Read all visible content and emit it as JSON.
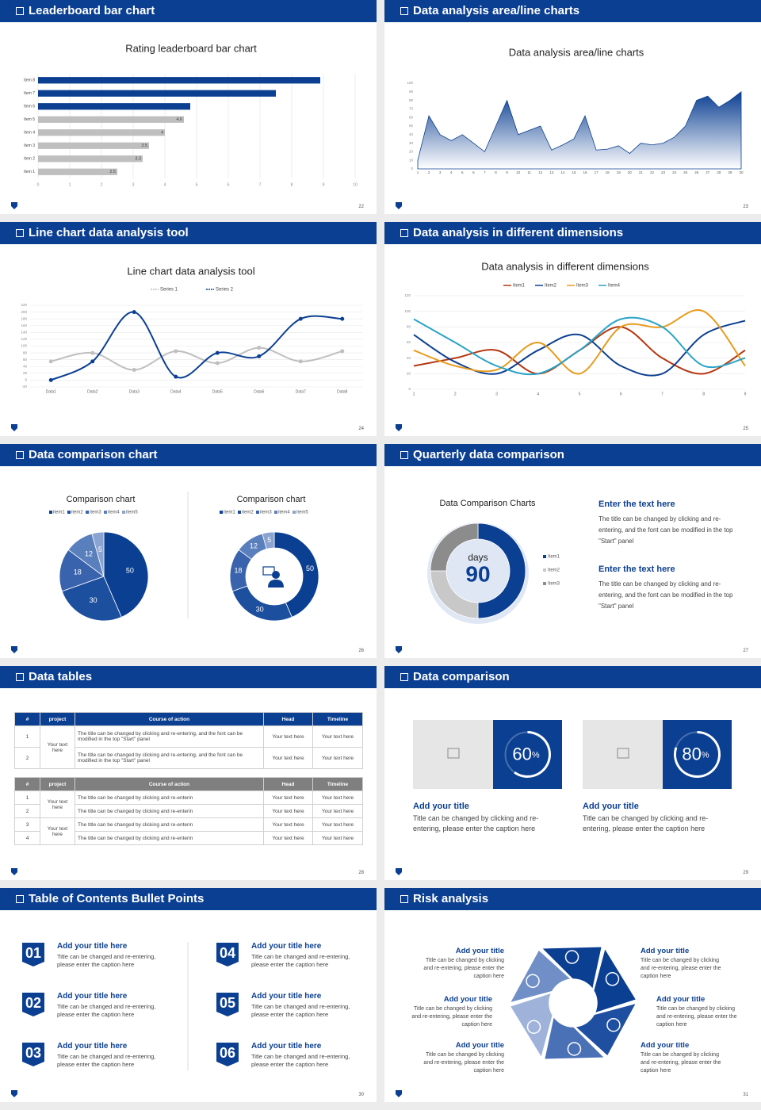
{
  "slides": [
    {
      "header": "Leaderboard bar chart",
      "page": "22",
      "chart": {
        "type": "hbar",
        "title": "Rating leaderboard bar chart",
        "categories": [
          "Item 1",
          "Item 2",
          "Item 3",
          "Item 4",
          "Item 5",
          "Item 6",
          "Item 7",
          "Item 8"
        ],
        "values": [
          2.5,
          3.3,
          3.5,
          4,
          4.6,
          4.8,
          7.5,
          8.9
        ],
        "value_labels": [
          "2.5",
          "3.3",
          "3.5",
          "4",
          "4.6",
          null,
          null,
          null
        ],
        "colors": [
          "#bfbfbf",
          "#bfbfbf",
          "#bfbfbf",
          "#bfbfbf",
          "#bfbfbf",
          "#0b3f92",
          "#0b3f92",
          "#0b3f92"
        ],
        "xlim": [
          0,
          10
        ],
        "xticks": [
          0,
          1,
          2,
          3,
          4,
          5,
          6,
          7,
          8,
          9,
          10
        ],
        "grid": true
      }
    },
    {
      "header": "Data analysis area/line charts",
      "page": "23",
      "chart": {
        "type": "area",
        "title": "Data analysis area/line charts",
        "x": [
          1,
          2,
          3,
          4,
          5,
          6,
          7,
          8,
          9,
          10,
          11,
          12,
          13,
          14,
          15,
          16,
          17,
          18,
          19,
          20,
          21,
          22,
          23,
          24,
          25,
          26,
          27,
          28,
          29,
          30
        ],
        "values": [
          10,
          62,
          40,
          33,
          40,
          30,
          20,
          50,
          80,
          40,
          45,
          50,
          22,
          28,
          35,
          62,
          22,
          23,
          27,
          18,
          30,
          28,
          30,
          37,
          50,
          80,
          85,
          72,
          80,
          90
        ],
        "color": "#0b3f92",
        "xlim": [
          1,
          30
        ],
        "ylim": [
          0,
          100
        ],
        "yticks": [
          0,
          10,
          20,
          30,
          40,
          50,
          60,
          70,
          80,
          90,
          100
        ]
      }
    },
    {
      "header": "Line chart data analysis tool",
      "page": "24",
      "chart": {
        "type": "line",
        "title": "Line chart data analysis tool",
        "categories": [
          "Data1",
          "Data2",
          "Data3",
          "Data4",
          "Data5",
          "Data6",
          "Data7",
          "Data8"
        ],
        "series": [
          {
            "name": "Series 1",
            "color": "#bfbfbf",
            "values": [
              55,
              80,
              30,
              85,
              50,
              95,
              55,
              85
            ]
          },
          {
            "name": "Series 2",
            "color": "#0b3f92",
            "values": [
              0,
              55,
              200,
              10,
              80,
              70,
              180,
              180
            ]
          }
        ],
        "markers": true,
        "grid": true,
        "ylim": [
          -20,
          220
        ],
        "yticks": [
          -20,
          0,
          20,
          40,
          60,
          80,
          100,
          120,
          140,
          160,
          180,
          200,
          220
        ]
      }
    },
    {
      "header": "Data analysis in different dimensions",
      "page": "25",
      "chart": {
        "type": "line",
        "title": "Data analysis in different dimensions",
        "x": [
          1,
          2,
          3,
          4,
          5,
          6,
          7,
          8,
          9
        ],
        "xlim": [
          1,
          9
        ],
        "series": [
          {
            "name": "Item1",
            "color": "#b5360f",
            "values": [
              30,
              40,
              50,
              20,
              50,
              80,
              40,
              20,
              50
            ]
          },
          {
            "name": "Item2",
            "color": "#0b3f92",
            "values": [
              70,
              35,
              20,
              50,
              70,
              30,
              20,
              70,
              88
            ]
          },
          {
            "name": "Item3",
            "color": "#e89b1c",
            "values": [
              50,
              30,
              25,
              60,
              20,
              80,
              80,
              100,
              30
            ]
          },
          {
            "name": "Item4",
            "color": "#2aa3c6",
            "values": [
              90,
              60,
              30,
              20,
              50,
              90,
              80,
              30,
              40
            ]
          }
        ],
        "markers": false,
        "grid": true,
        "ylim": [
          0,
          120
        ],
        "yticks": [
          0,
          20,
          40,
          60,
          80,
          100,
          120
        ]
      }
    },
    {
      "header": "Data comparison chart",
      "page": "26",
      "charts": [
        {
          "type": "pie",
          "title": "Comparison chart",
          "categories": [
            "item1",
            "item2",
            "item3",
            "item4",
            "item5"
          ],
          "values": [
            50,
            30,
            18,
            12,
            5
          ],
          "colors": [
            "#0b3f92",
            "#1d4f9f",
            "#3a63ad",
            "#5a7fbd",
            "#8aa3d0"
          ],
          "show_labels": true
        },
        {
          "type": "donut",
          "title": "Comparison chart",
          "categories": [
            "item1",
            "item2",
            "item3",
            "item4",
            "item5"
          ],
          "values": [
            50,
            30,
            18,
            12,
            5
          ],
          "colors": [
            "#0b3f92",
            "#1d4f9f",
            "#3a63ad",
            "#5a7fbd",
            "#8aa3d0"
          ],
          "show_labels": true
        }
      ]
    },
    {
      "header": "Quarterly data comparison",
      "page": "27",
      "charts": [
        {
          "type": "donut",
          "title": "Data Comparison Charts",
          "categories": [
            "Item1",
            "Item2",
            "Item3"
          ],
          "values": [
            50,
            25,
            25
          ],
          "colors": [
            "#0b3f92",
            "#c8c8c8",
            "#8c8c8c"
          ],
          "show_labels": false,
          "center_label": "days",
          "center_value": 90
        }
      ],
      "blocks": [
        {
          "title": "Enter the text here",
          "body": "The title can be changed by clicking and re-entering, and the font can be modified in the top \"Start\" panel"
        },
        {
          "title": "Enter the text here",
          "body": "The title can be changed by clicking and re-entering, and the font can be modified in the top \"Start\" panel"
        }
      ]
    },
    {
      "header": "Data tables",
      "page": "28",
      "tables": [
        {
          "color": "#0b3f92",
          "columns": [
            "#",
            "project",
            "Course of action",
            "Head",
            "Timeline"
          ],
          "groups": [
            {
              "project": "Your text here",
              "rows": [
                [
                  "1",
                  "The title can be changed by clicking and re-entering, and the font can be modified in the top \"Start\" panel",
                  "Your text here",
                  "Your text here"
                ],
                [
                  "2",
                  "The title can be changed by clicking and re-entering, and the font can be modified in the top \"Start\" panel",
                  "Your text here",
                  "Your text here"
                ]
              ]
            }
          ]
        },
        {
          "color": "#7f7f7f",
          "columns": [
            "#",
            "project",
            "Course of action",
            "Head",
            "Timeline"
          ],
          "groups": [
            {
              "project": "Your text here",
              "rows": [
                [
                  "1",
                  "The title can be changed by clicking and re-enterin",
                  "Your text here",
                  "Your text here"
                ],
                [
                  "2",
                  "The title can be changed by clicking and re-enterin",
                  "Your text here",
                  "Your text here"
                ]
              ]
            },
            {
              "project": "Your text here",
              "rows": [
                [
                  "3",
                  "The title can be changed by clicking and re-enterin",
                  "Your text here",
                  "Your text here"
                ],
                [
                  "4",
                  "The title can be changed by clicking and re-enterin",
                  "Your text here",
                  "Your text here"
                ]
              ]
            }
          ]
        }
      ]
    },
    {
      "header": "Data comparison",
      "page": "29",
      "cards": [
        {
          "value": 60,
          "unit": "%",
          "title": "Add your title",
          "caption": "Title can be changed by clicking and re-entering, please enter the caption here"
        },
        {
          "value": 80,
          "unit": "%",
          "title": "Add your title",
          "caption": "Title can be changed by clicking and re-entering, please enter the caption here"
        }
      ]
    },
    {
      "header": "Table of Contents Bullet Points",
      "page": "30",
      "items": [
        {
          "number": "01",
          "title": "Add your title here",
          "caption": "Title can be changed and re-entering, please enter the caption here"
        },
        {
          "number": "02",
          "title": "Add your title here",
          "caption": "Title can be changed and re-entering, please enter the caption here"
        },
        {
          "number": "03",
          "title": "Add your title here",
          "caption": "Title can be changed and re-entering, please enter the caption here"
        },
        {
          "number": "04",
          "title": "Add your title here",
          "caption": "Title can be changed and re-entering, please enter the caption here"
        },
        {
          "number": "05",
          "title": "Add your title here",
          "caption": "Title can be changed and re-entering, please enter the caption here"
        },
        {
          "number": "06",
          "title": "Add your title here",
          "caption": "Title can be changed and re-entering, please enter the caption here"
        }
      ]
    },
    {
      "header": "Risk analysis",
      "page": "31",
      "risks": [
        {
          "title": "Add your title",
          "caption": "Title can be changed by clicking and re-entering, please enter the caption here"
        },
        {
          "title": "Add your title",
          "caption": "Title can be changed by clicking and re-entering, please enter the caption here"
        },
        {
          "title": "Add your title",
          "caption": "Title can be changed by clicking and re-entering, please enter the caption here"
        },
        {
          "title": "Add your title",
          "caption": "Title can be changed by clicking and re-entering, please enter the caption here"
        },
        {
          "title": "Add your title",
          "caption": "Title can be changed by clicking and re-entering, please enter the caption here"
        },
        {
          "title": "Add your title",
          "caption": "Title can be changed by clicking and re-entering, please enter the caption here"
        }
      ]
    }
  ]
}
